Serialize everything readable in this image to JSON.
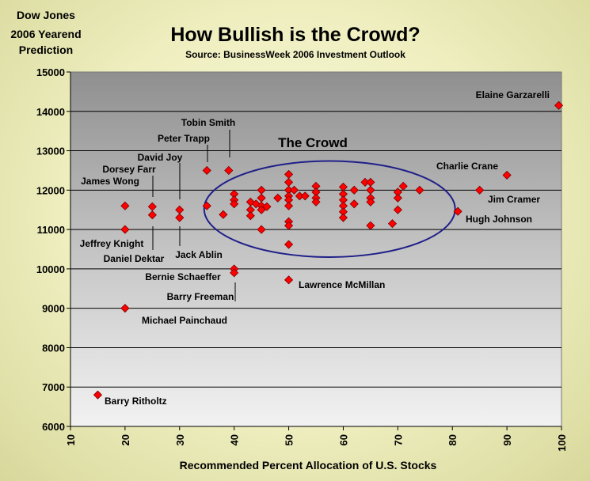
{
  "chart_data": {
    "type": "scatter",
    "title": "How Bullish is the Crowd?",
    "subtitle": "Source: BusinessWeek 2006 Investment Outlook",
    "corner_label": [
      "Dow Jones",
      "2006 Yearend",
      "Prediction"
    ],
    "xlabel": "Recommended Percent Allocation of U.S. Stocks",
    "ylabel": "",
    "xlim": [
      10,
      100
    ],
    "ylim": [
      6000,
      15000
    ],
    "x_ticks": [
      "10",
      "20",
      "30",
      "40",
      "50",
      "60",
      "70",
      "80",
      "90",
      "100"
    ],
    "y_ticks": [
      "15000",
      "14000",
      "13000",
      "12000",
      "11000",
      "10000",
      "9000",
      "8000",
      "7000",
      "6000"
    ],
    "grid": "horizontal",
    "background": "gray gradient plot area",
    "marker_color": "#ff0000",
    "marker_edge": "#7a0000",
    "ellipse_label": "The Crowd",
    "ellipse_color": "#1f1f8a",
    "ellipse": {
      "cx": 57.5,
      "cy": 11520,
      "rx": 23,
      "ry": 1220
    },
    "points": [
      {
        "x": 99.5,
        "y": 14150,
        "label": "Elaine Garzarelli"
      },
      {
        "x": 90,
        "y": 12380,
        "label": "Charlie Crane"
      },
      {
        "x": 85,
        "y": 12000,
        "label": "Jim Cramer"
      },
      {
        "x": 81,
        "y": 11460,
        "label": "Hugh Johnson"
      },
      {
        "x": 35,
        "y": 12500,
        "label": "Tobin Smith"
      },
      {
        "x": 39,
        "y": 12500,
        "label": "Peter Trapp"
      },
      {
        "x": 30,
        "y": 11500,
        "label": "David Joy"
      },
      {
        "x": 25,
        "y": 11580,
        "label": "Dorsey Farr"
      },
      {
        "x": 20,
        "y": 11600,
        "label": "James Wong"
      },
      {
        "x": 20,
        "y": 11000,
        "label": "Jeffrey Knight"
      },
      {
        "x": 25,
        "y": 11370,
        "label": "Daniel Dektar"
      },
      {
        "x": 30,
        "y": 11300,
        "label": "Jack Ablin"
      },
      {
        "x": 40,
        "y": 10000,
        "label": "Bernie Schaeffer"
      },
      {
        "x": 40,
        "y": 9900,
        "label": "Barry Freeman"
      },
      {
        "x": 50,
        "y": 9720,
        "label": "Lawrence McMillan"
      },
      {
        "x": 20,
        "y": 9000,
        "label": "Michael Painchaud"
      },
      {
        "x": 15,
        "y": 6800,
        "label": "Barry Ritholtz"
      },
      {
        "x": 35,
        "y": 11600,
        "label": ""
      },
      {
        "x": 38,
        "y": 11380,
        "label": ""
      },
      {
        "x": 40,
        "y": 11900,
        "label": ""
      },
      {
        "x": 40,
        "y": 11750,
        "label": ""
      },
      {
        "x": 40,
        "y": 11650,
        "label": ""
      },
      {
        "x": 43,
        "y": 11700,
        "label": ""
      },
      {
        "x": 43,
        "y": 11500,
        "label": ""
      },
      {
        "x": 43,
        "y": 11350,
        "label": ""
      },
      {
        "x": 44,
        "y": 11650,
        "label": ""
      },
      {
        "x": 45,
        "y": 12000,
        "label": ""
      },
      {
        "x": 45,
        "y": 11800,
        "label": ""
      },
      {
        "x": 45,
        "y": 11600,
        "label": ""
      },
      {
        "x": 45,
        "y": 11500,
        "label": ""
      },
      {
        "x": 45,
        "y": 11000,
        "label": ""
      },
      {
        "x": 46,
        "y": 11580,
        "label": ""
      },
      {
        "x": 48,
        "y": 11800,
        "label": ""
      },
      {
        "x": 50,
        "y": 12400,
        "label": ""
      },
      {
        "x": 50,
        "y": 12200,
        "label": ""
      },
      {
        "x": 50,
        "y": 12000,
        "label": ""
      },
      {
        "x": 50,
        "y": 11850,
        "label": ""
      },
      {
        "x": 50,
        "y": 11750,
        "label": ""
      },
      {
        "x": 50,
        "y": 11600,
        "label": ""
      },
      {
        "x": 50,
        "y": 11200,
        "label": ""
      },
      {
        "x": 50,
        "y": 11100,
        "label": ""
      },
      {
        "x": 50,
        "y": 10620,
        "label": ""
      },
      {
        "x": 51,
        "y": 12000,
        "label": ""
      },
      {
        "x": 52,
        "y": 11850,
        "label": ""
      },
      {
        "x": 53,
        "y": 11850,
        "label": ""
      },
      {
        "x": 55,
        "y": 12100,
        "label": ""
      },
      {
        "x": 55,
        "y": 11950,
        "label": ""
      },
      {
        "x": 55,
        "y": 11800,
        "label": ""
      },
      {
        "x": 55,
        "y": 11700,
        "label": ""
      },
      {
        "x": 60,
        "y": 12080,
        "label": ""
      },
      {
        "x": 60,
        "y": 11900,
        "label": ""
      },
      {
        "x": 60,
        "y": 11750,
        "label": ""
      },
      {
        "x": 60,
        "y": 11600,
        "label": ""
      },
      {
        "x": 60,
        "y": 11450,
        "label": ""
      },
      {
        "x": 60,
        "y": 11300,
        "label": ""
      },
      {
        "x": 62,
        "y": 12000,
        "label": ""
      },
      {
        "x": 62,
        "y": 11650,
        "label": ""
      },
      {
        "x": 64,
        "y": 12200,
        "label": ""
      },
      {
        "x": 65,
        "y": 12200,
        "label": ""
      },
      {
        "x": 65,
        "y": 12000,
        "label": ""
      },
      {
        "x": 65,
        "y": 11800,
        "label": ""
      },
      {
        "x": 65,
        "y": 11700,
        "label": ""
      },
      {
        "x": 65,
        "y": 11100,
        "label": ""
      },
      {
        "x": 69,
        "y": 11150,
        "label": ""
      },
      {
        "x": 70,
        "y": 11950,
        "label": ""
      },
      {
        "x": 70,
        "y": 11800,
        "label": ""
      },
      {
        "x": 70,
        "y": 11500,
        "label": ""
      },
      {
        "x": 71,
        "y": 12100,
        "label": ""
      },
      {
        "x": 74,
        "y": 12000,
        "label": ""
      }
    ]
  }
}
